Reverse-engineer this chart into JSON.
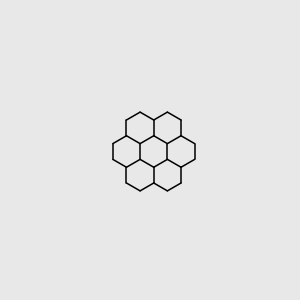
{
  "bg_color": "#e8e8e8",
  "bond_color": "#000000",
  "N_color": "#0000ee",
  "O_color": "#ee3300",
  "S_color": "#ccaa00",
  "Br_color": "#cc6600",
  "lw": 1.1,
  "dlw": 1.1,
  "doff": 0.055,
  "figsize": [
    3.0,
    3.0
  ],
  "dpi": 100,
  "xlim": [
    -2.7,
    2.7
  ],
  "ylim": [
    -3.3,
    3.3
  ]
}
